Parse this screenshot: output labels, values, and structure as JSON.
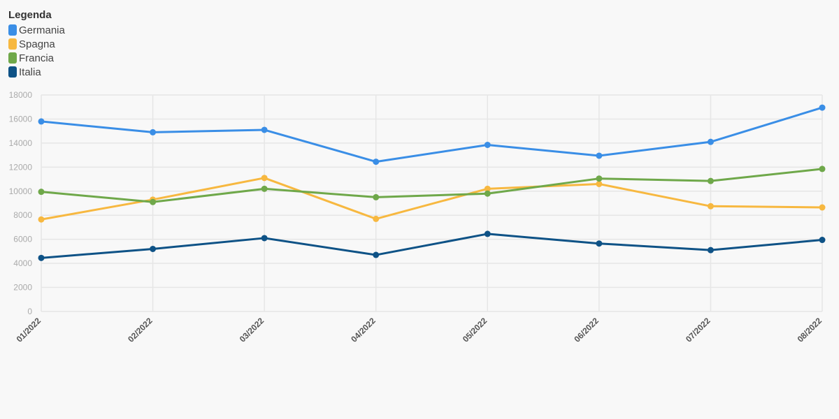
{
  "legend": {
    "title": "Legenda"
  },
  "chart_data": {
    "type": "line",
    "categories": [
      "01/2022",
      "02/2022",
      "03/2022",
      "04/2022",
      "05/2022",
      "06/2022",
      "07/2022",
      "08/2022"
    ],
    "ylim": [
      0,
      18000
    ],
    "yticks": [
      0,
      2000,
      4000,
      6000,
      8000,
      10000,
      12000,
      14000,
      16000,
      18000
    ],
    "grid": true,
    "legend_position": "top-left",
    "series": [
      {
        "name": "Germania",
        "color": "#3a8ee6",
        "values": [
          15800,
          14900,
          15100,
          12450,
          13850,
          12950,
          14100,
          16950
        ]
      },
      {
        "name": "Spagna",
        "color": "#f7b840",
        "values": [
          7650,
          9300,
          11100,
          7700,
          10200,
          10600,
          8750,
          8650
        ]
      },
      {
        "name": "Francia",
        "color": "#6fa84a",
        "values": [
          9950,
          9100,
          10200,
          9500,
          9800,
          11050,
          10850,
          11850
        ]
      },
      {
        "name": "Italia",
        "color": "#0e5286",
        "values": [
          4450,
          5200,
          6100,
          4700,
          6450,
          5650,
          5100,
          5950
        ]
      }
    ]
  }
}
